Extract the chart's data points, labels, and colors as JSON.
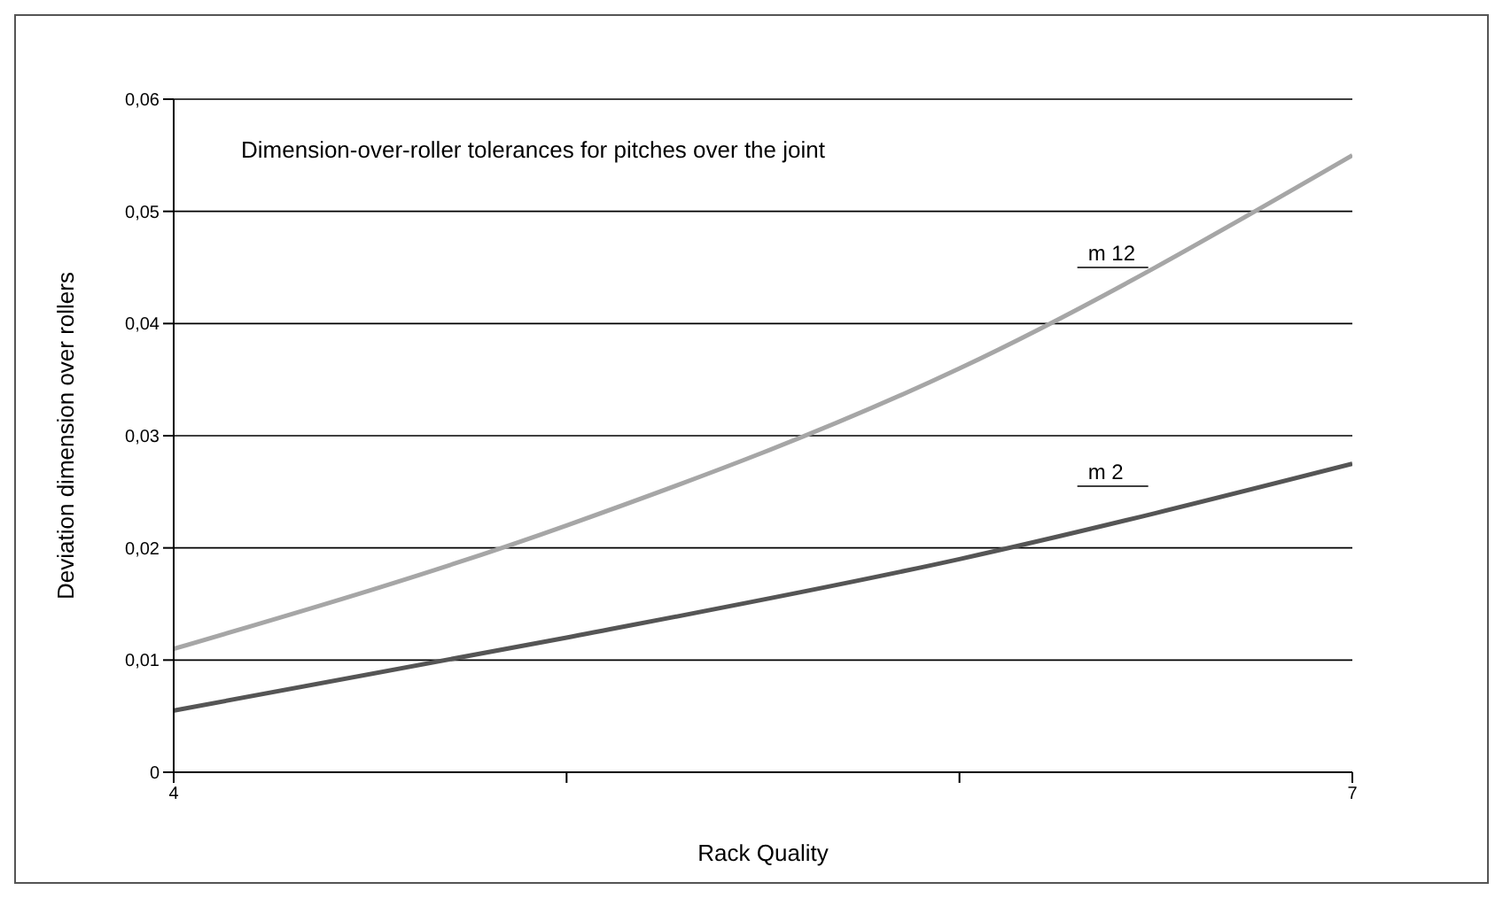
{
  "chart_data": {
    "type": "line",
    "title": "Dimension-over-roller tolerances for pitches over the joint",
    "xlabel": "Rack Quality",
    "ylabel": "Deviation dimension over rollers",
    "x": [
      4,
      5,
      6,
      7
    ],
    "series": [
      {
        "name": "m 12",
        "color": "#a6a6a6",
        "values": [
          0.011,
          0.022,
          0.036,
          0.055
        ]
      },
      {
        "name": "m 2",
        "color": "#555555",
        "values": [
          0.0055,
          0.012,
          0.019,
          0.0275
        ]
      }
    ],
    "xlim": [
      4,
      7
    ],
    "xticks": [
      4,
      {
        "value": 5,
        "label": null
      },
      {
        "value": 6,
        "label": null
      },
      7
    ],
    "ylim": [
      0,
      0.06
    ],
    "yticks": [
      0,
      {
        "value": 0.01,
        "label": "0,01"
      },
      {
        "value": 0.02,
        "label": "0,02"
      },
      {
        "value": 0.03,
        "label": "0,03"
      },
      {
        "value": 0.04,
        "label": "0,04"
      },
      {
        "value": 0.05,
        "label": "0,05"
      },
      {
        "value": 0.06,
        "label": "0,06"
      }
    ],
    "grid": "y",
    "legend": false,
    "marker": "none",
    "line_style": "solid"
  }
}
